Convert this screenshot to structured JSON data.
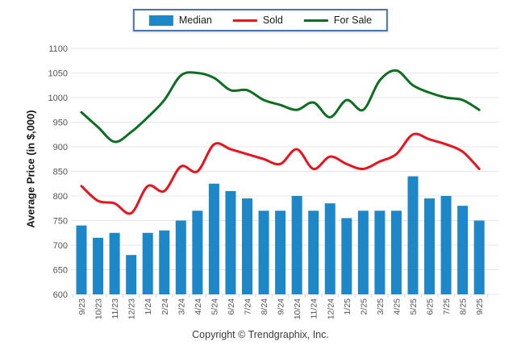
{
  "legend": {
    "border_color": "#4a74ae",
    "items": [
      {
        "label": "Median",
        "type": "bar",
        "color": "#1e87c7"
      },
      {
        "label": "Sold",
        "type": "line",
        "color": "#e8131c"
      },
      {
        "label": "For Sale",
        "type": "line",
        "color": "#0b6e20"
      }
    ]
  },
  "footer": {
    "copyright": "Copyright © Trendgraphix, Inc."
  },
  "chart_data": {
    "type": "bar",
    "subtype": "bar-with-lines",
    "title": "",
    "xlabel": "",
    "ylabel": "Average Price (in $,000)",
    "ylim": [
      600,
      1100
    ],
    "ytick_step": 50,
    "grid": true,
    "legend_position": "top",
    "categories": [
      "9/23",
      "10/23",
      "11/23",
      "12/23",
      "1/24",
      "2/24",
      "3/24",
      "4/24",
      "5/24",
      "6/24",
      "7/24",
      "8/24",
      "9/24",
      "10/24",
      "11/24",
      "12/24",
      "1/25",
      "2/25",
      "3/25",
      "4/25",
      "5/25",
      "6/25",
      "7/25",
      "8/25",
      "9/25"
    ],
    "series": [
      {
        "name": "Median",
        "type": "bar",
        "color": "#1e87c7",
        "values": [
          740,
          715,
          725,
          680,
          725,
          730,
          750,
          770,
          825,
          810,
          795,
          770,
          770,
          800,
          770,
          785,
          755,
          770,
          770,
          770,
          840,
          795,
          800,
          780,
          750
        ]
      },
      {
        "name": "Sold",
        "type": "line",
        "color": "#e8131c",
        "values": [
          820,
          790,
          785,
          765,
          820,
          810,
          860,
          850,
          905,
          895,
          885,
          875,
          865,
          895,
          855,
          880,
          865,
          855,
          870,
          885,
          925,
          915,
          905,
          890,
          855
        ]
      },
      {
        "name": "For Sale",
        "type": "line",
        "color": "#0b6e20",
        "values": [
          970,
          940,
          910,
          930,
          960,
          995,
          1045,
          1050,
          1040,
          1015,
          1015,
          995,
          985,
          975,
          990,
          960,
          995,
          975,
          1035,
          1055,
          1025,
          1010,
          1000,
          995,
          975
        ]
      }
    ]
  }
}
